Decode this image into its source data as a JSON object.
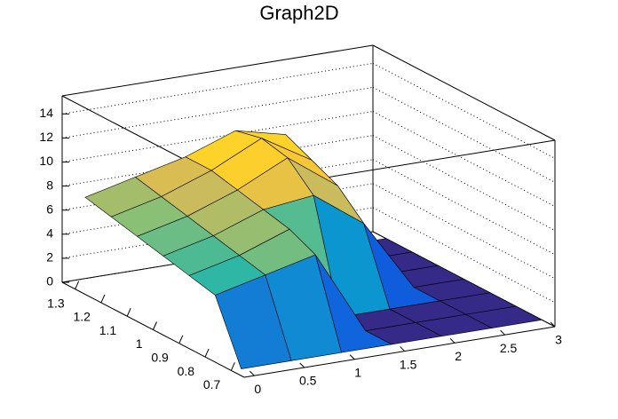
{
  "chart_data": {
    "type": "surface",
    "title": "Graph2D",
    "x": [
      0,
      0.5,
      1,
      1.5,
      2,
      2.5,
      3
    ],
    "y": [
      0.7,
      0.8,
      0.9,
      1,
      1.1,
      1.2,
      1.3
    ],
    "z": [
      [
        0,
        0,
        0,
        0,
        0,
        0,
        0
      ],
      [
        5,
        6,
        7,
        0,
        0,
        0,
        0
      ],
      [
        5.5,
        6.5,
        8,
        0,
        0,
        0,
        0
      ],
      [
        6,
        7,
        8.5,
        9,
        6,
        0,
        0
      ],
      [
        6.5,
        7.5,
        9,
        11,
        8,
        0,
        0
      ],
      [
        7,
        8,
        9.5,
        11.5,
        9,
        0,
        0
      ],
      [
        7.5,
        8.5,
        9.5,
        11,
        10,
        0,
        0
      ]
    ],
    "xlim": [
      -0.1,
      3
    ],
    "ylim": [
      0.65,
      1.35
    ],
    "zlim": [
      0,
      15.5
    ],
    "xticks": [
      0,
      0.5,
      1,
      1.5,
      2,
      2.5,
      3
    ],
    "yticks": [
      0.7,
      0.8,
      0.9,
      1,
      1.1,
      1.2,
      1.3
    ],
    "zticks": [
      0,
      2,
      4,
      6,
      8,
      10,
      12,
      14
    ],
    "grid": true
  }
}
